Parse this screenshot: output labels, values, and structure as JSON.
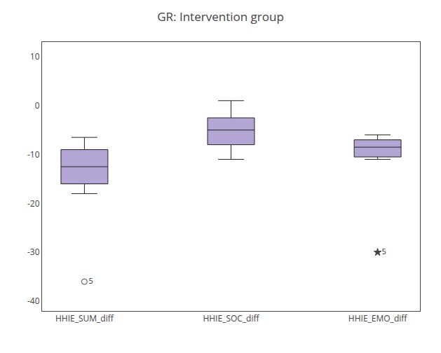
{
  "chart_data": {
    "type": "box",
    "title": "GR: Intervention group",
    "categories": [
      "HHIE_SUM_diff",
      "HHIE_SOC_diff",
      "HHIE_EMO_diff"
    ],
    "color": "#b3a5d4",
    "boxes": [
      {
        "whisker_low": -18.0,
        "q1": -16.0,
        "median": -12.5,
        "q3": -9.0,
        "whisker_high": -6.5,
        "outliers": [
          {
            "value": -36.0,
            "label": "5",
            "marker": "circle"
          }
        ]
      },
      {
        "whisker_low": -11.0,
        "q1": -8.0,
        "median": -5.0,
        "q3": -2.5,
        "whisker_high": 1.0,
        "outliers": []
      },
      {
        "whisker_low": -11.0,
        "q1": -10.5,
        "median": -8.5,
        "q3": -7.0,
        "whisker_high": -6.0,
        "outliers": [
          {
            "value": -30.0,
            "label": "5",
            "marker": "star"
          }
        ]
      }
    ],
    "ylim": [
      -42,
      13
    ],
    "yticks": [
      10,
      0,
      -10,
      -20,
      -30,
      -40
    ],
    "grid": false
  }
}
